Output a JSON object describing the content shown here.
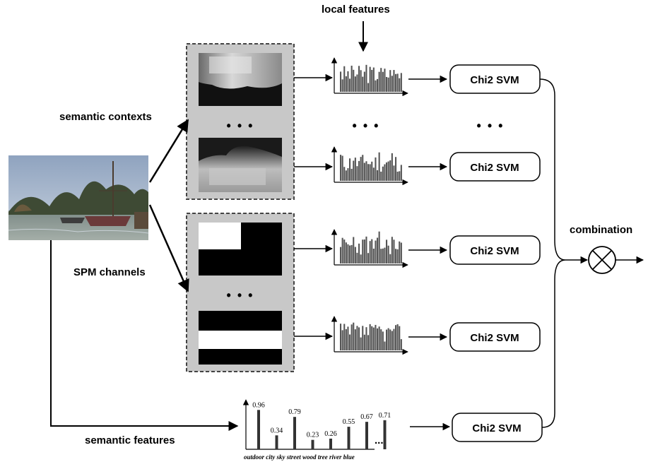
{
  "labels": {
    "local_features": "local features",
    "semantic_contexts": "semantic contexts",
    "spm_channels": "SPM channels",
    "semantic_features": "semantic features",
    "combination": "combination",
    "ellipsis": "• • •"
  },
  "svm_nodes": [
    {
      "label": "Chi2 SVM"
    },
    {
      "label": "Chi2 SVM"
    },
    {
      "label": "Chi2 SVM"
    },
    {
      "label": "Chi2 SVM"
    },
    {
      "label": "Chi2 SVM"
    }
  ],
  "semantic_feature_chart": {
    "type": "bar",
    "categories": [
      "outdoor",
      "city",
      "sky",
      "street",
      "wood",
      "tree",
      "river",
      "blue"
    ],
    "values": [
      0.96,
      0.34,
      0.79,
      0.23,
      0.26,
      0.55,
      0.67,
      0.71
    ],
    "value_labels": [
      "0.96",
      "0.34",
      "0.79",
      "0.23",
      "0.26",
      "0.55",
      "0.67",
      "0.71"
    ],
    "ellipsis": "..."
  },
  "colors": {
    "panel_bg": "#c8c8c8",
    "bars": "#555555",
    "line": "#000000"
  }
}
